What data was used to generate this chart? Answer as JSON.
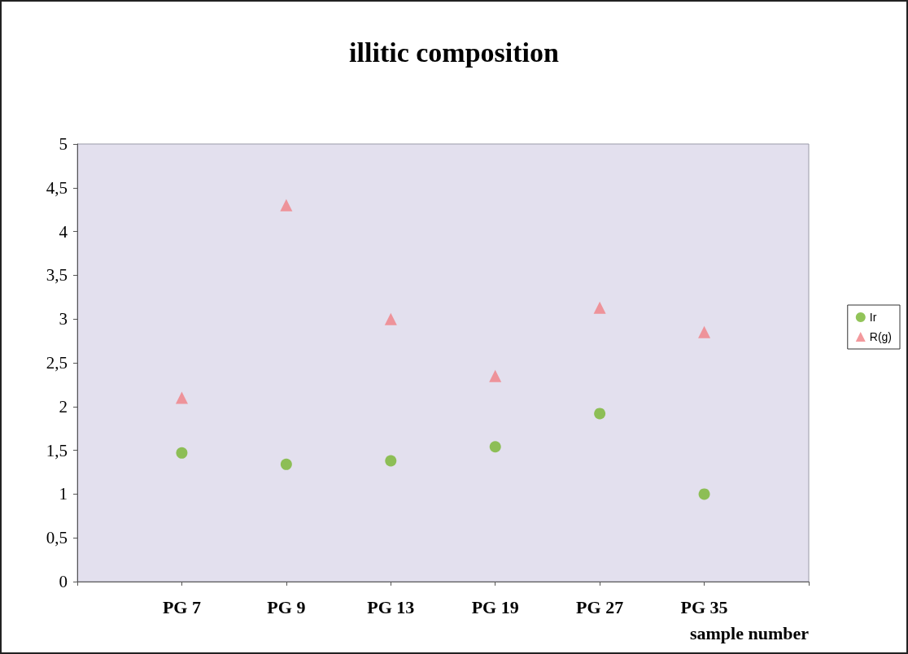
{
  "chart_data": {
    "type": "scatter",
    "title": "illitic composition",
    "xlabel": "sample number",
    "categories": [
      "PG 7",
      "PG 9",
      "PG 13",
      "PG 19",
      "PG 27",
      "PG 35"
    ],
    "series": [
      {
        "name": "Ir",
        "color": "#77b530",
        "marker": "circle",
        "values": [
          1.47,
          1.34,
          1.38,
          1.54,
          1.92,
          1.0
        ]
      },
      {
        "name": "R(g)",
        "color": "#f07f84",
        "marker": "triangle",
        "values": [
          2.1,
          4.3,
          3.0,
          2.35,
          3.13,
          2.85
        ]
      }
    ],
    "ylim": [
      0,
      5
    ],
    "yticks": [
      0,
      {
        "value": 0.5,
        "label": "0,5"
      },
      1,
      {
        "value": 1.5,
        "label": "1,5"
      },
      2,
      {
        "value": 2.5,
        "label": "2,5"
      },
      3,
      {
        "value": 3.5,
        "label": "3,5"
      },
      4,
      {
        "value": 4.5,
        "label": "4,5"
      },
      5
    ],
    "grid": false,
    "legend": "right"
  }
}
